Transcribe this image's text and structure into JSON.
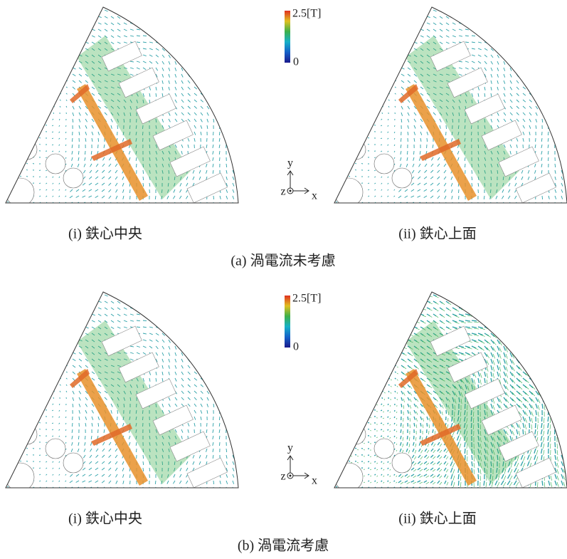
{
  "figure": {
    "groups": [
      {
        "caption": "(a) 渦電流未考慮",
        "panels": [
          {
            "caption": "(i) 鉄心中央"
          },
          {
            "caption": "(ii) 鉄心上面"
          }
        ],
        "colorbar": {
          "max_label": "2.5[T]",
          "min_label": "0"
        },
        "axes": {
          "y": "y",
          "z": "z",
          "x": "x"
        }
      },
      {
        "caption": "(b) 渦電流考慮",
        "panels": [
          {
            "caption": "(i) 鉄心中央"
          },
          {
            "caption": "(ii) 鉄心上面"
          }
        ],
        "colorbar": {
          "max_label": "2.5[T]",
          "min_label": "0"
        },
        "axes": {
          "y": "y",
          "z": "z",
          "x": "x"
        }
      }
    ]
  }
}
